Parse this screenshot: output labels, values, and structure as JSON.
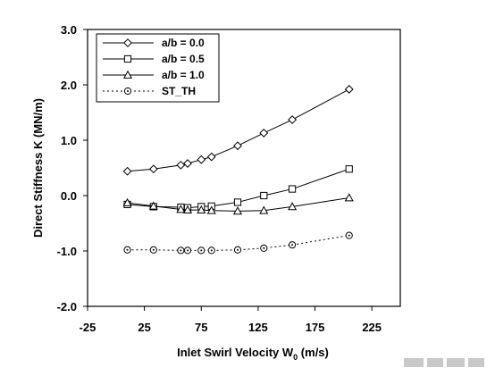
{
  "chart_data": {
    "type": "line",
    "title": "",
    "xlabel": "Inlet Swirl Velocity W",
    "xlabel_sub": "0",
    "xlabel_unit": " (m/s)",
    "ylabel": "Direct Stiffness K (MN/m)",
    "xlim": [
      -25,
      250
    ],
    "ylim": [
      -2.0,
      3.0
    ],
    "xticks": [
      -25,
      25,
      75,
      125,
      175,
      225
    ],
    "xtick_labels": [
      "-25",
      "25",
      "75",
      "125",
      "175",
      "225"
    ],
    "yticks": [
      -2.0,
      -1.0,
      0.0,
      1.0,
      2.0,
      3.0
    ],
    "ytick_labels": [
      "-2.0",
      "-1.0",
      "0.0",
      "1.0",
      "2.0",
      "3.0"
    ],
    "legend_position": "top-left",
    "grid": false,
    "series": [
      {
        "name": "a/b = 0.0",
        "marker": "diamond",
        "line": "solid",
        "x": [
          10,
          33,
          57,
          63,
          75,
          84,
          107,
          130,
          155,
          205
        ],
        "y": [
          0.44,
          0.48,
          0.55,
          0.58,
          0.65,
          0.7,
          0.9,
          1.13,
          1.37,
          1.92
        ]
      },
      {
        "name": "a/b = 0.5",
        "marker": "square",
        "line": "solid",
        "x": [
          10,
          33,
          57,
          63,
          75,
          84,
          107,
          130,
          155,
          205
        ],
        "y": [
          -0.16,
          -0.2,
          -0.21,
          -0.22,
          -0.2,
          -0.19,
          -0.12,
          0.0,
          0.12,
          0.48
        ]
      },
      {
        "name": "a/b = 1.0",
        "marker": "triangle",
        "line": "solid",
        "x": [
          10,
          33,
          57,
          63,
          75,
          84,
          107,
          130,
          155,
          205
        ],
        "y": [
          -0.13,
          -0.19,
          -0.25,
          -0.26,
          -0.26,
          -0.27,
          -0.28,
          -0.27,
          -0.2,
          -0.04
        ]
      },
      {
        "name": "ST_TH",
        "marker": "circle-dot",
        "line": "dotted",
        "x": [
          10,
          33,
          57,
          63,
          75,
          84,
          107,
          130,
          155,
          205
        ],
        "y": [
          -0.98,
          -0.98,
          -0.99,
          -0.99,
          -0.99,
          -0.99,
          -0.98,
          -0.95,
          -0.89,
          -0.72
        ]
      }
    ]
  }
}
